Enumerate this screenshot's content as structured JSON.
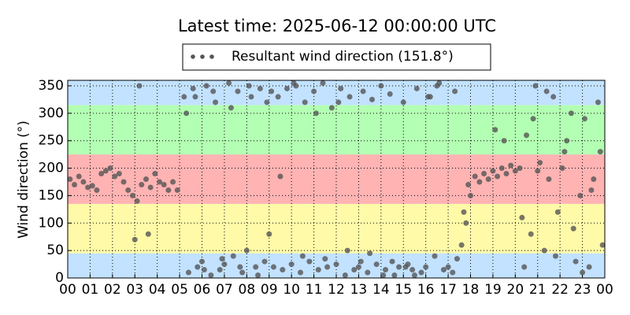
{
  "chart_data": {
    "type": "scatter",
    "title": "Latest time: 2025-06-12 00:00:00 UTC",
    "y_label": "Wind direction (°)",
    "xlim": [
      0,
      24
    ],
    "ylim": [
      0,
      360
    ],
    "xticks": [
      {
        "value": 0,
        "label": "00"
      },
      {
        "value": 1,
        "label": "01"
      },
      {
        "value": 2,
        "label": "02"
      },
      {
        "value": 3,
        "label": "03"
      },
      {
        "value": 4,
        "label": "04"
      },
      {
        "value": 5,
        "label": "05"
      },
      {
        "value": 6,
        "label": "06"
      },
      {
        "value": 7,
        "label": "07"
      },
      {
        "value": 8,
        "label": "08"
      },
      {
        "value": 9,
        "label": "09"
      },
      {
        "value": 10,
        "label": "10"
      },
      {
        "value": 11,
        "label": "11"
      },
      {
        "value": 12,
        "label": "12"
      },
      {
        "value": 13,
        "label": "13"
      },
      {
        "value": 14,
        "label": "14"
      },
      {
        "value": 15,
        "label": "15"
      },
      {
        "value": 16,
        "label": "16"
      },
      {
        "value": 17,
        "label": "17"
      },
      {
        "value": 18,
        "label": "18"
      },
      {
        "value": 19,
        "label": "19"
      },
      {
        "value": 20,
        "label": "20"
      },
      {
        "value": 21,
        "label": "21"
      },
      {
        "value": 22,
        "label": "22"
      },
      {
        "value": 23,
        "label": "23"
      },
      {
        "value": 24,
        "label": "00"
      }
    ],
    "yticks": [
      0,
      50,
      100,
      150,
      200,
      250,
      300,
      350
    ],
    "grid": true,
    "bands": [
      {
        "from": 0,
        "to": 45,
        "color": "#c2e2ff"
      },
      {
        "from": 45,
        "to": 135,
        "color": "#fffaa8"
      },
      {
        "from": 135,
        "to": 225,
        "color": "#ffb3b3"
      },
      {
        "from": 225,
        "to": 315,
        "color": "#b3ffb3"
      },
      {
        "from": 315,
        "to": 360,
        "color": "#c2e2ff"
      }
    ],
    "series": [
      {
        "name": "Resultant wind direction (151.8°)",
        "color": "#555555",
        "x": [
          0.1,
          0.3,
          0.5,
          0.7,
          0.9,
          1.1,
          1.3,
          1.5,
          1.7,
          1.9,
          2.1,
          2.3,
          2.5,
          2.7,
          2.9,
          3.1,
          3.3,
          3.5,
          3.7,
          3.9,
          4.1,
          4.3,
          4.5,
          4.7,
          4.9,
          3.0,
          3.2,
          3.6,
          5.2,
          5.4,
          5.6,
          5.8,
          6.0,
          6.2,
          6.4,
          6.6,
          6.8,
          7.0,
          7.2,
          7.4,
          7.6,
          7.8,
          8.0,
          8.2,
          8.4,
          8.6,
          8.8,
          5.3,
          5.7,
          6.1,
          6.5,
          6.9,
          7.3,
          7.7,
          8.1,
          8.5,
          8.9,
          9.0,
          9.2,
          9.4,
          9.6,
          9.8,
          10.0,
          10.2,
          10.4,
          10.6,
          10.8,
          11.0,
          11.2,
          11.4,
          11.6,
          11.8,
          12.0,
          12.2,
          12.4,
          12.6,
          12.8,
          13.0,
          13.2,
          13.4,
          13.6,
          13.8,
          14.0,
          14.2,
          14.4,
          14.6,
          14.8,
          15.0,
          15.2,
          15.4,
          15.6,
          15.8,
          16.0,
          16.2,
          16.4,
          16.6,
          16.8,
          9.1,
          10.1,
          11.1,
          12.1,
          13.1,
          14.1,
          15.1,
          16.1,
          9.5,
          10.5,
          11.5,
          12.5,
          13.5,
          14.5,
          15.5,
          16.5,
          17.0,
          17.2,
          17.4,
          17.6,
          17.8,
          18.0,
          17.3,
          17.7,
          17.9,
          18.2,
          18.4,
          18.6,
          18.8,
          19.0,
          19.2,
          19.4,
          19.6,
          19.8,
          20.0,
          20.2,
          19.1,
          19.5,
          20.3,
          20.5,
          20.7,
          20.9,
          21.1,
          21.3,
          21.5,
          21.7,
          21.9,
          22.1,
          22.3,
          22.5,
          22.7,
          22.9,
          23.1,
          23.3,
          23.5,
          23.7,
          23.9,
          20.4,
          20.8,
          21.0,
          21.4,
          21.8,
          22.2,
          22.6,
          23.0,
          23.4,
          23.8
        ],
        "values": [
          180,
          170,
          185,
          175,
          165,
          168,
          160,
          190,
          195,
          200,
          185,
          190,
          175,
          160,
          150,
          140,
          170,
          180,
          165,
          190,
          175,
          170,
          160,
          175,
          160,
          70,
          350,
          80,
          330,
          10,
          345,
          20,
          30,
          350,
          5,
          320,
          15,
          25,
          355,
          40,
          340,
          10,
          50,
          330,
          20,
          345,
          30,
          300,
          330,
          15,
          340,
          35,
          310,
          20,
          350,
          5,
          320,
          80,
          20,
          330,
          15,
          345,
          25,
          350,
          10,
          320,
          30,
          340,
          15,
          355,
          20,
          310,
          25,
          345,
          5,
          330,
          15,
          20,
          340,
          10,
          325,
          25,
          350,
          15,
          335,
          5,
          20,
          320,
          25,
          15,
          345,
          10,
          20,
          330,
          40,
          355,
          15,
          340,
          355,
          300,
          320,
          30,
          5,
          20,
          330,
          185,
          40,
          35,
          50,
          45,
          30,
          5,
          350,
          20,
          10,
          35,
          60,
          100,
          150,
          340,
          120,
          170,
          185,
          175,
          190,
          180,
          195,
          185,
          200,
          190,
          205,
          195,
          200,
          270,
          250,
          110,
          260,
          80,
          350,
          210,
          50,
          180,
          330,
          120,
          200,
          250,
          300,
          30,
          150,
          290,
          20,
          180,
          320,
          60,
          20,
          290,
          195,
          340,
          40,
          230,
          90,
          10,
          160,
          230
        ]
      }
    ]
  }
}
